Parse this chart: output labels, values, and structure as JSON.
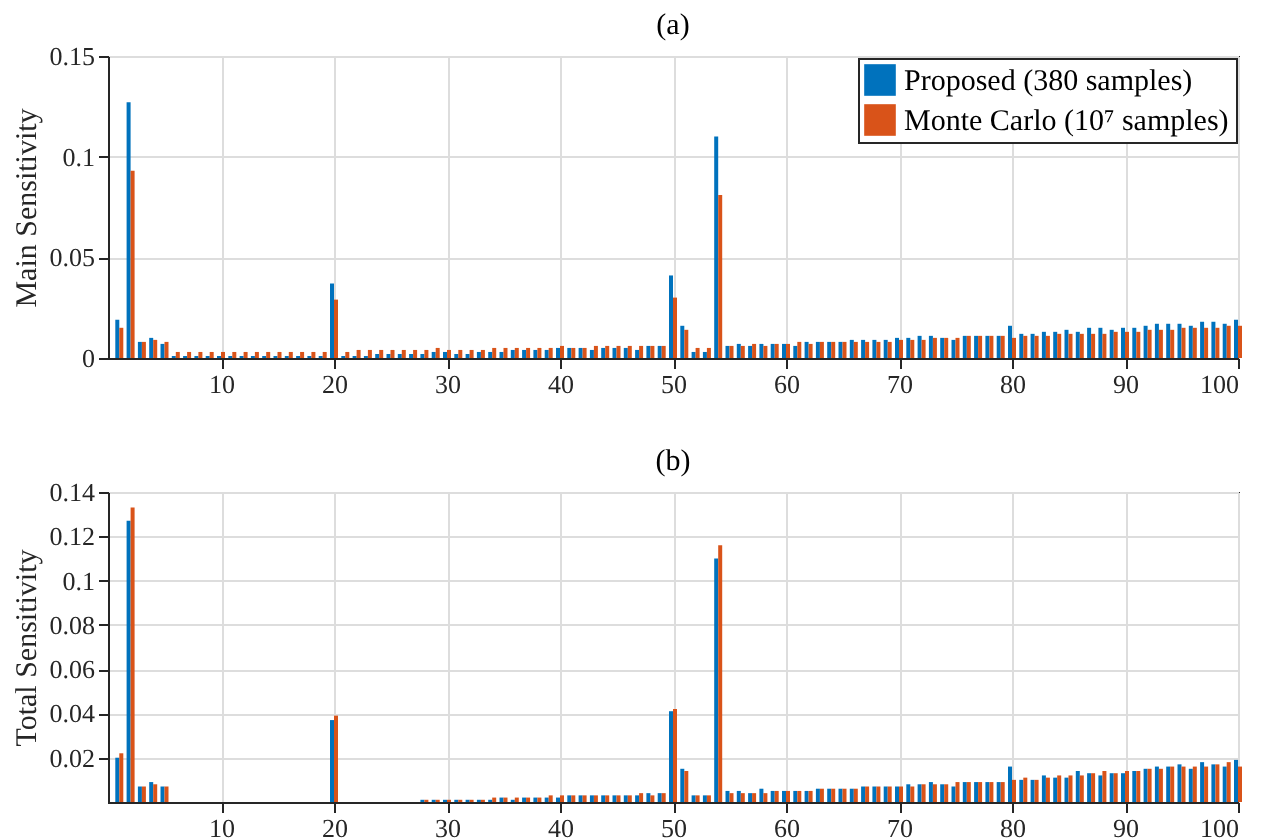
{
  "chart_data": [
    {
      "type": "bar",
      "title": "(a)",
      "ylabel": "Main Sensitivity",
      "grid": true,
      "legend": "top right",
      "x": [
        1,
        2,
        3,
        4,
        5,
        6,
        7,
        8,
        9,
        10,
        11,
        12,
        13,
        14,
        15,
        16,
        17,
        18,
        19,
        20,
        21,
        22,
        23,
        24,
        25,
        26,
        27,
        28,
        29,
        30,
        31,
        32,
        33,
        34,
        35,
        36,
        37,
        38,
        39,
        40,
        41,
        42,
        43,
        44,
        45,
        46,
        47,
        48,
        49,
        50,
        51,
        52,
        53,
        54,
        55,
        56,
        57,
        58,
        59,
        60,
        61,
        62,
        63,
        64,
        65,
        66,
        67,
        68,
        69,
        70,
        71,
        72,
        73,
        74,
        75,
        76,
        77,
        78,
        79,
        80,
        81,
        82,
        83,
        84,
        85,
        86,
        87,
        88,
        89,
        90,
        91,
        92,
        93,
        94,
        95,
        96,
        97,
        98,
        99,
        100
      ],
      "xlim": [
        0,
        100
      ],
      "xticks": [
        10,
        20,
        30,
        40,
        50,
        60,
        70,
        80,
        90,
        100
      ],
      "ylim": [
        0,
        0.15
      ],
      "yticks": [
        0,
        0.05,
        0.1,
        0.15
      ],
      "series": [
        {
          "name": "Proposed (380 samples)",
          "color": "#0072bd",
          "values": [
            0.019,
            0.127,
            0.008,
            0.01,
            0.007,
            0.001,
            0.001,
            0.001,
            0.001,
            0.001,
            0.001,
            0.001,
            0.001,
            0.001,
            0.001,
            0.001,
            0.001,
            0.001,
            0.001,
            0.037,
            0.001,
            0.001,
            0.001,
            0.002,
            0.002,
            0.002,
            0.002,
            0.002,
            0.003,
            0.003,
            0.002,
            0.002,
            0.003,
            0.003,
            0.003,
            0.004,
            0.004,
            0.004,
            0.004,
            0.005,
            0.005,
            0.005,
            0.004,
            0.005,
            0.005,
            0.005,
            0.004,
            0.006,
            0.006,
            0.041,
            0.016,
            0.003,
            0.003,
            0.11,
            0.006,
            0.007,
            0.006,
            0.007,
            0.007,
            0.007,
            0.006,
            0.008,
            0.008,
            0.008,
            0.008,
            0.009,
            0.009,
            0.009,
            0.009,
            0.01,
            0.01,
            0.011,
            0.011,
            0.01,
            0.009,
            0.011,
            0.011,
            0.011,
            0.011,
            0.016,
            0.012,
            0.012,
            0.013,
            0.013,
            0.014,
            0.013,
            0.015,
            0.015,
            0.014,
            0.015,
            0.015,
            0.016,
            0.017,
            0.017,
            0.017,
            0.016,
            0.018,
            0.018,
            0.017,
            0.019
          ]
        },
        {
          "name": "Monte Carlo (10⁷ samples)",
          "color": "#d95319",
          "values": [
            0.015,
            0.093,
            0.008,
            0.009,
            0.008,
            0.003,
            0.003,
            0.003,
            0.003,
            0.003,
            0.003,
            0.003,
            0.003,
            0.003,
            0.003,
            0.003,
            0.003,
            0.003,
            0.003,
            0.029,
            0.003,
            0.004,
            0.004,
            0.004,
            0.004,
            0.004,
            0.004,
            0.004,
            0.005,
            0.004,
            0.004,
            0.004,
            0.004,
            0.005,
            0.005,
            0.005,
            0.005,
            0.005,
            0.005,
            0.006,
            0.005,
            0.005,
            0.006,
            0.006,
            0.006,
            0.006,
            0.006,
            0.006,
            0.006,
            0.03,
            0.014,
            0.005,
            0.005,
            0.081,
            0.006,
            0.006,
            0.007,
            0.006,
            0.007,
            0.007,
            0.008,
            0.007,
            0.008,
            0.008,
            0.008,
            0.008,
            0.008,
            0.008,
            0.008,
            0.009,
            0.009,
            0.009,
            0.01,
            0.01,
            0.01,
            0.011,
            0.011,
            0.011,
            0.011,
            0.01,
            0.011,
            0.011,
            0.011,
            0.012,
            0.012,
            0.012,
            0.012,
            0.012,
            0.013,
            0.013,
            0.013,
            0.014,
            0.014,
            0.014,
            0.015,
            0.015,
            0.015,
            0.015,
            0.016,
            0.016
          ]
        }
      ]
    },
    {
      "type": "bar",
      "title": "(b)",
      "ylabel": "Total Sensitivity",
      "grid": true,
      "x": [
        1,
        2,
        3,
        4,
        5,
        6,
        7,
        8,
        9,
        10,
        11,
        12,
        13,
        14,
        15,
        16,
        17,
        18,
        19,
        20,
        21,
        22,
        23,
        24,
        25,
        26,
        27,
        28,
        29,
        30,
        31,
        32,
        33,
        34,
        35,
        36,
        37,
        38,
        39,
        40,
        41,
        42,
        43,
        44,
        45,
        46,
        47,
        48,
        49,
        50,
        51,
        52,
        53,
        54,
        55,
        56,
        57,
        58,
        59,
        60,
        61,
        62,
        63,
        64,
        65,
        66,
        67,
        68,
        69,
        70,
        71,
        72,
        73,
        74,
        75,
        76,
        77,
        78,
        79,
        80,
        81,
        82,
        83,
        84,
        85,
        86,
        87,
        88,
        89,
        90,
        91,
        92,
        93,
        94,
        95,
        96,
        97,
        98,
        99,
        100
      ],
      "xlim": [
        0,
        100
      ],
      "xticks": [
        10,
        20,
        30,
        40,
        50,
        60,
        70,
        80,
        90,
        100
      ],
      "ylim": [
        0,
        0.14
      ],
      "yticks": [
        0.02,
        0.04,
        0.06,
        0.08,
        0.1,
        0.12,
        0.14
      ],
      "series": [
        {
          "color": "#0072bd",
          "values": [
            0.02,
            0.127,
            0.007,
            0.009,
            0.007,
            0,
            0,
            0,
            0,
            0,
            0,
            0,
            0,
            0,
            0,
            0,
            0,
            0,
            0,
            0.037,
            0,
            0,
            0,
            0,
            0,
            0,
            0,
            0.001,
            0.001,
            0.001,
            0.001,
            0.001,
            0.001,
            0.001,
            0.002,
            0.001,
            0.002,
            0.002,
            0.002,
            0.002,
            0.003,
            0.003,
            0.003,
            0.003,
            0.003,
            0.003,
            0.003,
            0.004,
            0.004,
            0.041,
            0.015,
            0.003,
            0.003,
            0.11,
            0.005,
            0.005,
            0.004,
            0.006,
            0.005,
            0.005,
            0.005,
            0.005,
            0.006,
            0.006,
            0.006,
            0.006,
            0.007,
            0.007,
            0.007,
            0.007,
            0.008,
            0.008,
            0.009,
            0.008,
            0.007,
            0.009,
            0.009,
            0.009,
            0.009,
            0.016,
            0.01,
            0.01,
            0.012,
            0.011,
            0.011,
            0.014,
            0.013,
            0.012,
            0.013,
            0.013,
            0.014,
            0.015,
            0.016,
            0.016,
            0.017,
            0.015,
            0.018,
            0.017,
            0.016,
            0.019
          ]
        },
        {
          "color": "#d95319",
          "values": [
            0.022,
            0.133,
            0.007,
            0.008,
            0.007,
            0,
            0,
            0,
            0,
            0,
            0,
            0,
            0,
            0,
            0,
            0,
            0,
            0,
            0,
            0.039,
            0,
            0,
            0,
            0,
            0,
            0,
            0,
            0.001,
            0.001,
            0.001,
            0.001,
            0.001,
            0.001,
            0.002,
            0.002,
            0.002,
            0.002,
            0.002,
            0.003,
            0.003,
            0.003,
            0.003,
            0.003,
            0.003,
            0.003,
            0.003,
            0.004,
            0.003,
            0.004,
            0.042,
            0.014,
            0.003,
            0.003,
            0.116,
            0.004,
            0.004,
            0.004,
            0.004,
            0.005,
            0.005,
            0.005,
            0.005,
            0.006,
            0.006,
            0.006,
            0.006,
            0.007,
            0.007,
            0.007,
            0.007,
            0.007,
            0.008,
            0.008,
            0.008,
            0.009,
            0.009,
            0.009,
            0.009,
            0.009,
            0.01,
            0.011,
            0.01,
            0.011,
            0.012,
            0.012,
            0.012,
            0.013,
            0.014,
            0.013,
            0.014,
            0.014,
            0.015,
            0.015,
            0.016,
            0.016,
            0.016,
            0.016,
            0.017,
            0.018,
            0.016
          ]
        }
      ]
    }
  ]
}
